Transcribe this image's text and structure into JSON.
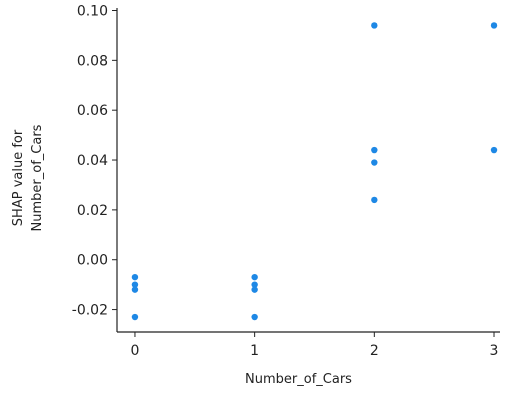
{
  "chart_data": {
    "type": "scatter",
    "title": "",
    "xlabel": "Number_of_Cars",
    "ylabel": [
      "SHAP value for",
      "Number_of_Cars"
    ],
    "xlim": [
      -0.15,
      3.05
    ],
    "ylim": [
      -0.029,
      0.101
    ],
    "x_ticks": [
      0,
      1,
      2,
      3
    ],
    "y_ticks": [
      -0.02,
      0.0,
      0.02,
      0.04,
      0.06,
      0.08,
      0.1
    ],
    "y_tick_labels": [
      "-0.02",
      "0.00",
      "0.02",
      "0.04",
      "0.06",
      "0.08",
      "0.10"
    ],
    "grid": false,
    "point_color": "#1e88e5",
    "points": [
      {
        "x": 0,
        "y": -0.007
      },
      {
        "x": 0,
        "y": -0.01
      },
      {
        "x": 0,
        "y": -0.012
      },
      {
        "x": 0,
        "y": -0.023
      },
      {
        "x": 1,
        "y": -0.007
      },
      {
        "x": 1,
        "y": -0.01
      },
      {
        "x": 1,
        "y": -0.012
      },
      {
        "x": 1,
        "y": -0.023
      },
      {
        "x": 2,
        "y": 0.094
      },
      {
        "x": 2,
        "y": 0.044
      },
      {
        "x": 2,
        "y": 0.039
      },
      {
        "x": 2,
        "y": 0.024
      },
      {
        "x": 3,
        "y": 0.094
      },
      {
        "x": 3,
        "y": 0.044
      }
    ]
  }
}
